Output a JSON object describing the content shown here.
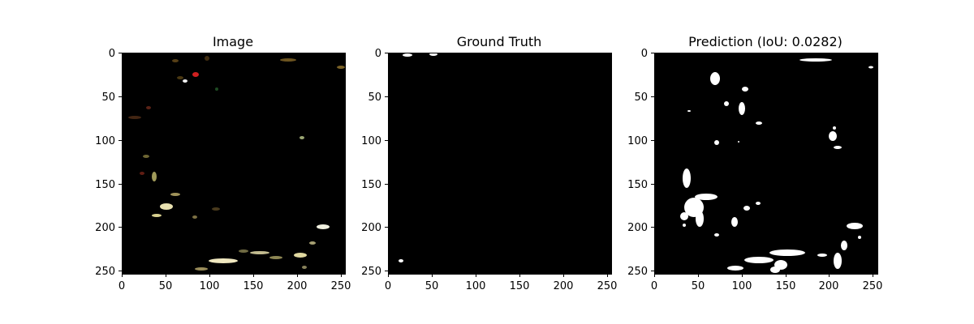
{
  "panels": [
    {
      "title": "Image"
    },
    {
      "title": "Ground Truth"
    },
    {
      "title": "Prediction (IoU: 0.0282)"
    }
  ],
  "axes": {
    "x_ticks": [
      "0",
      "50",
      "100",
      "150",
      "200",
      "250"
    ],
    "y_ticks": [
      "0",
      "50",
      "100",
      "150",
      "200",
      "250"
    ]
  },
  "colors": {
    "background": "#000000",
    "mask": "#ffffff",
    "figure": "#ffffff"
  }
}
